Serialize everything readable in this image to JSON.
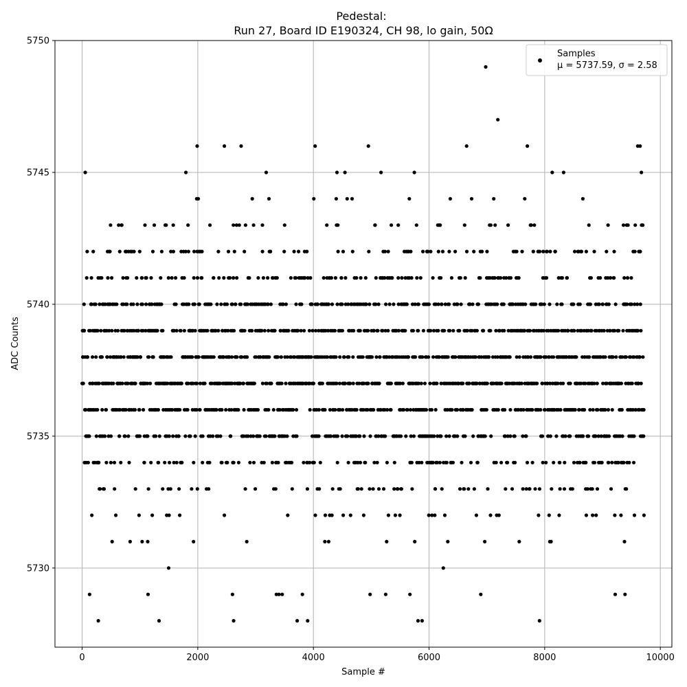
{
  "chart_data": {
    "type": "scatter",
    "title_line1": "Pedestal:",
    "title_line2": "Run 27, Board ID E190324, CH 98, lo gain, 50Ω",
    "xlabel": "Sample #",
    "ylabel": "ADC Counts",
    "xlim": [
      -470,
      10200
    ],
    "ylim": [
      5727,
      5750
    ],
    "xticks": [
      0,
      2000,
      4000,
      6000,
      8000,
      10000
    ],
    "xtick_labels": [
      "0",
      "2000",
      "4000",
      "6000",
      "8000",
      "10000"
    ],
    "yticks": [
      5730,
      5735,
      5740,
      5745,
      5750
    ],
    "ytick_labels": [
      "5730",
      "5735",
      "5740",
      "5745",
      "5750"
    ],
    "grid": true,
    "legend_position": "top-right",
    "marker_color": "#000000",
    "series": [
      {
        "name": "Samples",
        "stats_label": "μ = 5737.59, σ = 2.58",
        "mean": 5737.59,
        "sigma": 2.58,
        "n_samples": 9720,
        "notable_points": [
          {
            "x": 6980,
            "y": 5749
          },
          {
            "x": 7190,
            "y": 5747
          },
          {
            "x": 1990,
            "y": 5746
          },
          {
            "x": 2460,
            "y": 5746
          },
          {
            "x": 2750,
            "y": 5746
          },
          {
            "x": 4030,
            "y": 5746
          },
          {
            "x": 4950,
            "y": 5746
          },
          {
            "x": 6650,
            "y": 5746
          },
          {
            "x": 7700,
            "y": 5746
          },
          {
            "x": 9610,
            "y": 5746
          },
          {
            "x": 9650,
            "y": 5746
          },
          {
            "x": 280,
            "y": 5728
          },
          {
            "x": 1330,
            "y": 5728
          },
          {
            "x": 2620,
            "y": 5728
          },
          {
            "x": 3720,
            "y": 5728
          },
          {
            "x": 3900,
            "y": 5728
          },
          {
            "x": 5810,
            "y": 5728
          },
          {
            "x": 5880,
            "y": 5728
          },
          {
            "x": 7910,
            "y": 5728
          },
          {
            "x": 1140,
            "y": 5729
          },
          {
            "x": 2600,
            "y": 5729
          },
          {
            "x": 3360,
            "y": 5729
          },
          {
            "x": 3460,
            "y": 5729
          },
          {
            "x": 3810,
            "y": 5729
          },
          {
            "x": 4980,
            "y": 5729
          },
          {
            "x": 5250,
            "y": 5729
          },
          {
            "x": 5670,
            "y": 5729
          },
          {
            "x": 9220,
            "y": 5729
          },
          {
            "x": 9390,
            "y": 5729
          }
        ]
      }
    ]
  }
}
